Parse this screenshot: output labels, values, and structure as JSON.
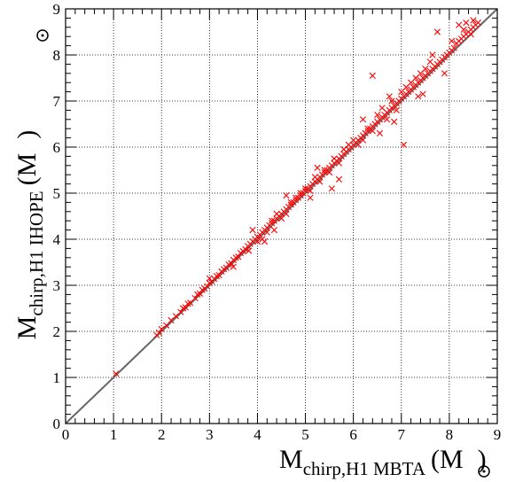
{
  "chart_data": {
    "type": "scatter",
    "xlabel": {
      "main": "M",
      "sub": "chirp,H1 MBTA",
      "unit_open": "(M",
      "unit_close": ")"
    },
    "ylabel": {
      "main": "M",
      "sub": "chirp,H1 IHOPE",
      "unit_open": "(M",
      "unit_close": ")"
    },
    "xlim": [
      0,
      9
    ],
    "ylim": [
      0,
      9
    ],
    "xticks": [
      "0",
      "1",
      "2",
      "3",
      "4",
      "5",
      "6",
      "7",
      "8",
      "9"
    ],
    "yticks": [
      "0",
      "1",
      "2",
      "3",
      "4",
      "5",
      "6",
      "7",
      "8",
      "9"
    ],
    "grid": true,
    "reference_line": {
      "slope": 1,
      "intercept": 0,
      "color": "#666666"
    },
    "series": [
      {
        "marker": "x",
        "color": "#ff0000",
        "points": [
          [
            1.05,
            1.08
          ],
          [
            1.9,
            1.92
          ],
          [
            1.95,
            1.97
          ],
          [
            2.0,
            2.05
          ],
          [
            2.1,
            2.13
          ],
          [
            2.2,
            2.24
          ],
          [
            2.3,
            2.33
          ],
          [
            2.4,
            2.42
          ],
          [
            2.45,
            2.5
          ],
          [
            2.5,
            2.52
          ],
          [
            2.55,
            2.6
          ],
          [
            2.6,
            2.62
          ],
          [
            2.7,
            2.72
          ],
          [
            2.75,
            2.8
          ],
          [
            2.8,
            2.82
          ],
          [
            2.85,
            2.9
          ],
          [
            2.9,
            2.93
          ],
          [
            2.95,
            2.98
          ],
          [
            3.0,
            3.05
          ],
          [
            3.05,
            3.08
          ],
          [
            3.1,
            3.14
          ],
          [
            3.15,
            3.2
          ],
          [
            3.2,
            3.22
          ],
          [
            3.25,
            3.3
          ],
          [
            3.3,
            3.35
          ],
          [
            3.35,
            3.38
          ],
          [
            3.4,
            3.45
          ],
          [
            3.45,
            3.48
          ],
          [
            3.5,
            3.55
          ],
          [
            3.5,
            3.4
          ],
          [
            3.55,
            3.6
          ],
          [
            3.6,
            3.62
          ],
          [
            3.65,
            3.7
          ],
          [
            3.7,
            3.74
          ],
          [
            3.75,
            3.78
          ],
          [
            3.8,
            3.85
          ],
          [
            3.82,
            3.75
          ],
          [
            3.85,
            3.9
          ],
          [
            3.9,
            3.95
          ],
          [
            3.95,
            4.0
          ],
          [
            4.0,
            4.05
          ],
          [
            4.0,
            3.95
          ],
          [
            4.05,
            4.1
          ],
          [
            4.1,
            4.15
          ],
          [
            4.1,
            4.0
          ],
          [
            4.15,
            4.2
          ],
          [
            4.2,
            4.25
          ],
          [
            4.2,
            4.15
          ],
          [
            4.25,
            4.3
          ],
          [
            4.3,
            4.35
          ],
          [
            4.3,
            4.4
          ],
          [
            4.35,
            4.4
          ],
          [
            4.4,
            4.45
          ],
          [
            4.4,
            4.55
          ],
          [
            4.45,
            4.5
          ],
          [
            4.5,
            4.55
          ],
          [
            4.5,
            4.45
          ],
          [
            4.55,
            4.6
          ],
          [
            4.6,
            4.65
          ],
          [
            4.6,
            4.55
          ],
          [
            4.65,
            4.7
          ],
          [
            4.7,
            4.75
          ],
          [
            4.7,
            4.8
          ],
          [
            4.75,
            4.8
          ],
          [
            4.8,
            4.85
          ],
          [
            4.8,
            4.9
          ],
          [
            4.85,
            4.9
          ],
          [
            4.9,
            4.95
          ],
          [
            4.9,
            5.0
          ],
          [
            4.95,
            5.0
          ],
          [
            5.0,
            5.05
          ],
          [
            5.0,
            5.1
          ],
          [
            5.05,
            5.1
          ],
          [
            5.1,
            5.15
          ],
          [
            5.1,
            5.05
          ],
          [
            5.15,
            5.2
          ],
          [
            5.2,
            5.25
          ],
          [
            5.2,
            5.35
          ],
          [
            5.25,
            5.3
          ],
          [
            5.3,
            5.35
          ],
          [
            5.3,
            5.25
          ],
          [
            5.35,
            5.4
          ],
          [
            5.4,
            5.45
          ],
          [
            5.4,
            5.5
          ],
          [
            5.45,
            5.5
          ],
          [
            5.5,
            5.55
          ],
          [
            5.5,
            5.45
          ],
          [
            5.55,
            5.6
          ],
          [
            5.6,
            5.65
          ],
          [
            5.6,
            5.75
          ],
          [
            5.65,
            5.7
          ],
          [
            5.7,
            5.75
          ],
          [
            5.7,
            5.65
          ],
          [
            5.75,
            5.8
          ],
          [
            5.8,
            5.85
          ],
          [
            5.8,
            5.95
          ],
          [
            5.85,
            5.9
          ],
          [
            5.9,
            5.95
          ],
          [
            5.9,
            6.05
          ],
          [
            5.95,
            6.0
          ],
          [
            6.0,
            6.05
          ],
          [
            6.0,
            6.15
          ],
          [
            6.05,
            6.1
          ],
          [
            6.1,
            6.15
          ],
          [
            6.1,
            6.05
          ],
          [
            6.15,
            6.2
          ],
          [
            6.2,
            6.25
          ],
          [
            6.2,
            6.15
          ],
          [
            6.25,
            6.3
          ],
          [
            6.3,
            6.35
          ],
          [
            6.3,
            6.4
          ],
          [
            6.35,
            6.4
          ],
          [
            6.4,
            6.45
          ],
          [
            6.4,
            6.35
          ],
          [
            6.45,
            6.5
          ],
          [
            6.5,
            6.55
          ],
          [
            6.5,
            6.7
          ],
          [
            6.55,
            6.6
          ],
          [
            6.6,
            6.65
          ],
          [
            6.6,
            6.85
          ],
          [
            6.65,
            6.7
          ],
          [
            6.7,
            6.75
          ],
          [
            6.7,
            6.6
          ],
          [
            6.75,
            6.8
          ],
          [
            6.8,
            6.85
          ],
          [
            6.8,
            7.0
          ],
          [
            6.85,
            6.9
          ],
          [
            6.9,
            6.95
          ],
          [
            6.9,
            6.8
          ],
          [
            6.95,
            7.0
          ],
          [
            7.0,
            7.05
          ],
          [
            7.0,
            7.2
          ],
          [
            7.05,
            7.1
          ],
          [
            7.1,
            7.15
          ],
          [
            7.1,
            7.3
          ],
          [
            7.15,
            7.2
          ],
          [
            7.2,
            7.25
          ],
          [
            7.2,
            7.4
          ],
          [
            7.25,
            7.3
          ],
          [
            7.3,
            7.35
          ],
          [
            7.3,
            7.5
          ],
          [
            7.35,
            7.4
          ],
          [
            7.4,
            7.45
          ],
          [
            7.4,
            7.6
          ],
          [
            7.45,
            7.5
          ],
          [
            7.5,
            7.55
          ],
          [
            7.5,
            7.7
          ],
          [
            7.55,
            7.6
          ],
          [
            7.6,
            7.65
          ],
          [
            7.6,
            7.85
          ],
          [
            7.65,
            7.7
          ],
          [
            7.65,
            8.0
          ],
          [
            7.7,
            7.75
          ],
          [
            7.75,
            7.8
          ],
          [
            7.8,
            7.85
          ],
          [
            7.85,
            7.9
          ],
          [
            7.9,
            7.95
          ],
          [
            7.95,
            8.0
          ],
          [
            8.0,
            8.05
          ],
          [
            8.05,
            8.1
          ],
          [
            8.1,
            8.15
          ],
          [
            8.15,
            8.25
          ],
          [
            8.2,
            8.3
          ],
          [
            8.25,
            8.35
          ],
          [
            8.3,
            8.4
          ],
          [
            8.35,
            8.45
          ],
          [
            8.4,
            8.5
          ],
          [
            8.45,
            8.55
          ],
          [
            8.5,
            8.6
          ],
          [
            8.55,
            8.65
          ],
          [
            8.6,
            8.7
          ],
          [
            8.35,
            8.7
          ],
          [
            8.5,
            8.75
          ],
          [
            8.3,
            8.55
          ],
          [
            8.45,
            8.45
          ],
          [
            6.4,
            7.55
          ],
          [
            7.05,
            6.05
          ],
          [
            7.75,
            8.5
          ],
          [
            5.7,
            5.3
          ],
          [
            5.55,
            5.1
          ],
          [
            4.6,
            4.95
          ],
          [
            3.9,
            4.2
          ],
          [
            6.2,
            6.6
          ],
          [
            8.2,
            8.65
          ],
          [
            7.45,
            7.15
          ],
          [
            6.85,
            6.55
          ],
          [
            5.25,
            5.55
          ],
          [
            4.15,
            3.95
          ],
          [
            7.9,
            7.6
          ],
          [
            3.0,
            3.15
          ],
          [
            4.35,
            4.2
          ],
          [
            5.1,
            4.9
          ],
          [
            6.55,
            6.3
          ],
          [
            7.35,
            7.1
          ],
          [
            8.05,
            8.3
          ],
          [
            6.75,
            7.1
          ]
        ]
      }
    ]
  }
}
